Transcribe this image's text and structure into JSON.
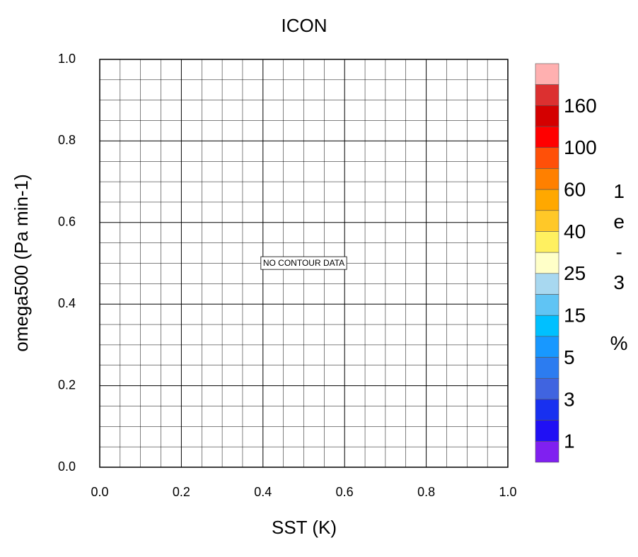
{
  "chart_data": {
    "type": "contour",
    "title": "ICON",
    "x_label": "SST (K)",
    "y_label": "omega500 (Pa min-1)",
    "xlim": [
      0,
      1
    ],
    "ylim": [
      0,
      1
    ],
    "xticks": [
      {
        "value": 0,
        "label": "0.0"
      },
      {
        "value": 0.2,
        "label": "0.2"
      },
      {
        "value": 0.4,
        "label": "0.4"
      },
      {
        "value": 0.6,
        "label": "0.6"
      },
      {
        "value": 0.8,
        "label": "0.8"
      },
      {
        "value": 1,
        "label": "1.0"
      }
    ],
    "yticks": [
      {
        "value": 0,
        "label": "0.0"
      },
      {
        "value": 0.2,
        "label": "0.2"
      },
      {
        "value": 0.4,
        "label": "0.4"
      },
      {
        "value": 0.6,
        "label": "0.6"
      },
      {
        "value": 0.8,
        "label": "0.8"
      },
      {
        "value": 1,
        "label": "1.0"
      }
    ],
    "grid": true,
    "annotation": "NO CONTOUR DATA",
    "colorbar": {
      "title": "1e-3 %",
      "colors": [
        "#ffb0b0",
        "#dc3030",
        "#d40000",
        "#ff0000",
        "#ff5008",
        "#ff8000",
        "#ffa800",
        "#ffc828",
        "#fff060",
        "#ffffc8",
        "#a8d8f0",
        "#60c4f4",
        "#00c0ff",
        "#1898ff",
        "#2c7cf0",
        "#4064e0",
        "#1830f0",
        "#2010f4",
        "#8020f0"
      ],
      "labels": [
        160,
        100,
        60,
        40,
        25,
        15,
        5,
        3,
        1
      ]
    }
  }
}
